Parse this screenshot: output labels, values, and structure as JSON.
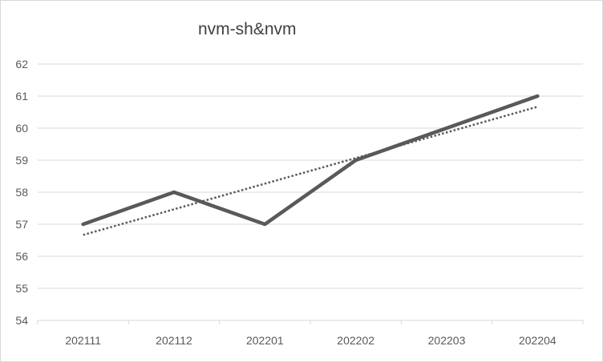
{
  "chart_data": {
    "type": "line",
    "title": "nvm-sh&nvm",
    "categories": [
      "202111",
      "202112",
      "202201",
      "202202",
      "202203",
      "202204"
    ],
    "series": [
      {
        "values": [
          57,
          58,
          57,
          59,
          60,
          61
        ],
        "color": "#595959",
        "style": "solid"
      }
    ],
    "trendline": {
      "type": "linear",
      "color": "#595959",
      "style": "dotted"
    },
    "y_ticks": [
      54,
      55,
      56,
      57,
      58,
      59,
      60,
      61,
      62
    ],
    "ylim": [
      54,
      62
    ],
    "grid": true,
    "legend": "none"
  }
}
